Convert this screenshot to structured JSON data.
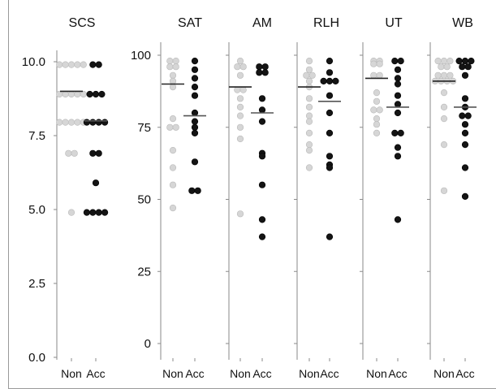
{
  "chart_data": [
    {
      "type": "scatter",
      "title": "SCS",
      "categories": [
        "Non",
        "Acc"
      ],
      "ylim": [
        0,
        10
      ],
      "yticks": [
        "0.0",
        "2.5",
        "5.0",
        "7.5",
        "10.0"
      ],
      "series": [
        {
          "values": [
            9.9,
            9.9,
            9.9,
            9.9,
            9.9,
            8.9,
            8.9,
            8.9,
            8.9,
            8.9,
            7.95,
            7.95,
            7.95,
            7.95,
            7.95,
            6.9,
            6.9,
            4.9
          ],
          "mean": 9.0,
          "color": "#d6d6d6"
        },
        {
          "values": [
            9.9,
            9.9,
            8.9,
            8.9,
            8.9,
            7.95,
            7.95,
            7.95,
            7.95,
            6.9,
            6.9,
            5.9,
            4.9,
            4.9,
            4.9,
            4.9
          ],
          "mean": 8.0,
          "color": "#141414"
        }
      ]
    },
    {
      "type": "scatter",
      "title": "SAT",
      "categories": [
        "Non",
        "Acc"
      ],
      "ylim": [
        0,
        100
      ],
      "yticks": [
        "0",
        "25",
        "50",
        "75",
        "100"
      ],
      "series": [
        {
          "values": [
            98,
            98,
            96,
            96,
            93,
            91,
            89,
            78,
            75,
            75,
            67,
            61,
            55,
            47
          ],
          "mean": 90,
          "color": "#d6d6d6"
        },
        {
          "values": [
            98,
            95,
            92,
            89,
            86,
            80,
            77,
            75,
            73,
            63,
            53,
            53
          ],
          "mean": 79,
          "color": "#141414"
        }
      ]
    },
    {
      "type": "scatter",
      "title": "AM",
      "categories": [
        "Non",
        "Acc"
      ],
      "ylim": [
        0,
        100
      ],
      "yticks": [],
      "series": [
        {
          "values": [
            98,
            96,
            96,
            93,
            88,
            88,
            85,
            82,
            79,
            75,
            71,
            45
          ],
          "mean": 89,
          "color": "#d6d6d6"
        },
        {
          "values": [
            96,
            96,
            94,
            94,
            85,
            81,
            77,
            66,
            65,
            55,
            43,
            37
          ],
          "mean": 80,
          "color": "#141414"
        }
      ]
    },
    {
      "type": "scatter",
      "title": "RLH",
      "categories": [
        "Non",
        "Acc"
      ],
      "ylim": [
        0,
        100
      ],
      "yticks": [],
      "series": [
        {
          "values": [
            98,
            95,
            93,
            93,
            91,
            89,
            85,
            82,
            79,
            77,
            73,
            69,
            67,
            61
          ],
          "mean": 89,
          "color": "#d6d6d6"
        },
        {
          "values": [
            98,
            94,
            91,
            91,
            91,
            86,
            80,
            73,
            65,
            62,
            61,
            37
          ],
          "mean": 84,
          "color": "#141414"
        }
      ]
    },
    {
      "type": "scatter",
      "title": "UT",
      "categories": [
        "Non",
        "Acc"
      ],
      "ylim": [
        0,
        100
      ],
      "yticks": [],
      "series": [
        {
          "values": [
            98,
            98,
            97,
            97,
            93,
            93,
            87,
            84,
            81,
            81,
            78,
            76,
            73
          ],
          "mean": 92,
          "color": "#d6d6d6"
        },
        {
          "values": [
            98,
            98,
            95,
            92,
            90,
            86,
            83,
            80,
            73,
            73,
            68,
            65,
            43
          ],
          "mean": 82,
          "color": "#141414"
        }
      ]
    },
    {
      "type": "scatter",
      "title": "WB",
      "categories": [
        "Non",
        "Acc"
      ],
      "ylim": [
        0,
        100
      ],
      "yticks": [],
      "series": [
        {
          "values": [
            98,
            98,
            98,
            96,
            96,
            93,
            93,
            93,
            91,
            91,
            91,
            91,
            87,
            82,
            78,
            69,
            53
          ],
          "mean": 91,
          "color": "#d6d6d6"
        },
        {
          "values": [
            98,
            98,
            98,
            96,
            96,
            93,
            85,
            82,
            79,
            79,
            76,
            73,
            69,
            61,
            51
          ],
          "mean": 82,
          "color": "#141414"
        }
      ]
    }
  ]
}
